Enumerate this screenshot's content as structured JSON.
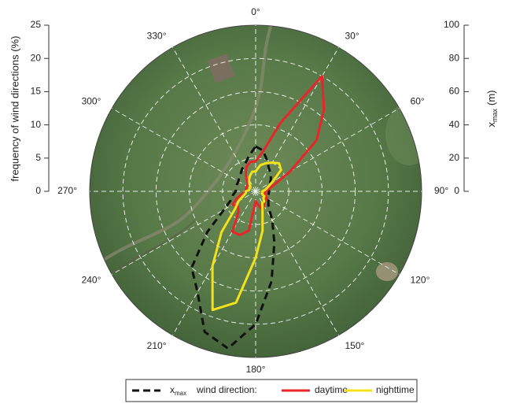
{
  "chart_data": {
    "type": "polar",
    "ylabel": "frequency of wind directions (%)",
    "y2label": {
      "main": "x",
      "sub": "max",
      "unit": "(m)"
    },
    "ylim": [
      0,
      25
    ],
    "yticks": [
      0,
      5,
      10,
      15,
      20,
      25
    ],
    "y2lim": [
      0,
      100
    ],
    "y2ticks": [
      0,
      20,
      40,
      60,
      80,
      100
    ],
    "angle_ticks": [
      {
        "value": 0,
        "label": "0°"
      },
      {
        "value": 30,
        "label": "30°"
      },
      {
        "value": 60,
        "label": "60°"
      },
      {
        "value": 90,
        "label": "90°"
      },
      {
        "value": 120,
        "label": "120°"
      },
      {
        "value": 150,
        "label": "150°"
      },
      {
        "value": 180,
        "label": "180°"
      },
      {
        "value": 210,
        "label": "210°"
      },
      {
        "value": 240,
        "label": "240°"
      },
      {
        "value": 270,
        "label": "270°"
      },
      {
        "value": 300,
        "label": "300°"
      },
      {
        "value": 330,
        "label": "330°"
      }
    ],
    "grid": true,
    "legend_title": "wind direction:",
    "theta": [
      0,
      10,
      20,
      30,
      40,
      50,
      60,
      70,
      80,
      90,
      100,
      110,
      120,
      130,
      140,
      150,
      160,
      170,
      180,
      190,
      200,
      210,
      220,
      230,
      240,
      250,
      260,
      270,
      280,
      290,
      300,
      310,
      320,
      330,
      340,
      350
    ],
    "series": [
      {
        "name": "x",
        "subscript": "max",
        "color": "#111111",
        "dashed": true,
        "axis": "y2",
        "values": [
          27,
          25,
          20,
          16,
          14,
          12,
          10,
          9,
          8,
          8,
          8,
          8,
          9,
          10,
          12,
          20,
          33,
          55,
          80,
          96,
          90,
          70,
          60,
          38,
          22,
          16,
          14,
          12,
          12,
          12,
          12,
          13,
          14,
          16,
          18,
          22
        ]
      },
      {
        "name": "daytime",
        "color": "#e8262a",
        "dashed": false,
        "values": [
          4.5,
          6,
          11,
          20,
          16,
          12,
          6,
          3,
          2,
          1.5,
          1.5,
          1.5,
          2,
          2,
          2,
          2.5,
          3,
          2,
          1.5,
          6,
          7,
          7,
          4,
          3.5,
          4,
          3,
          2,
          1.5,
          1.5,
          1.5,
          1.5,
          1.5,
          2,
          3,
          4,
          4.5
        ]
      },
      {
        "name": "nighttime",
        "color": "#f5e11a",
        "dashed": false,
        "values": [
          3,
          4,
          4.5,
          5,
          5.5,
          5,
          3,
          2,
          1.5,
          1,
          1,
          1,
          1.5,
          1.5,
          2,
          2,
          3,
          6,
          10,
          17,
          19,
          13,
          8,
          4,
          3,
          2,
          1.5,
          1.5,
          1,
          1,
          1,
          1,
          1.5,
          2,
          2.5,
          3
        ]
      }
    ]
  }
}
